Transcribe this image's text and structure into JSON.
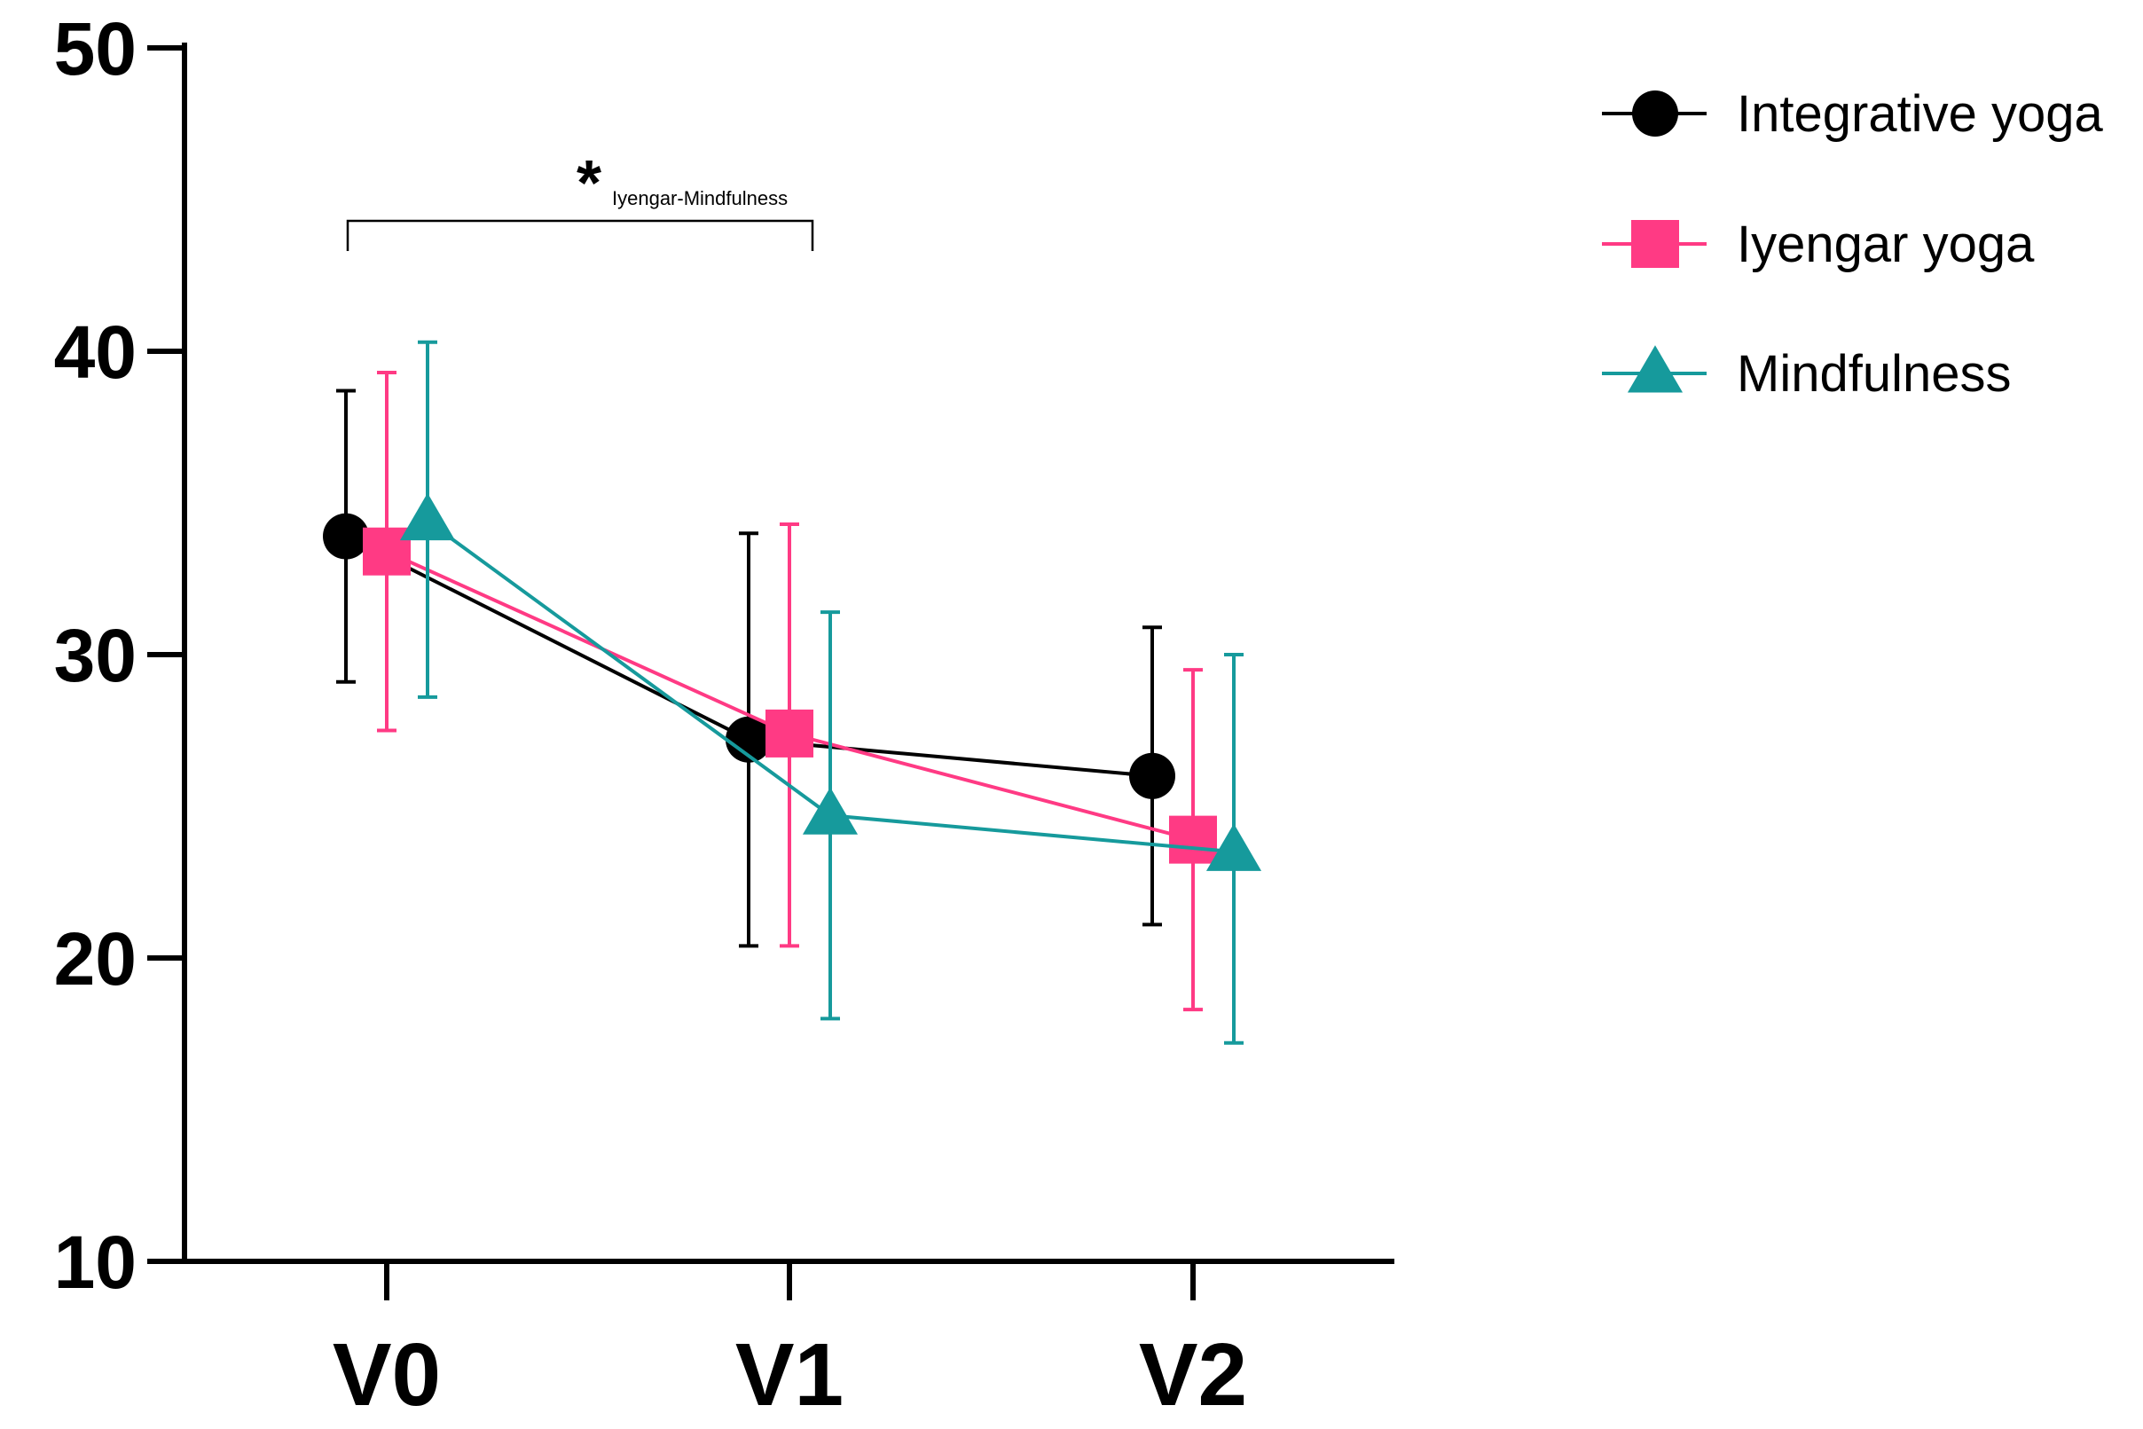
{
  "chart_data": {
    "type": "line",
    "title": "",
    "xlabel": "",
    "ylabel": "",
    "categories": [
      "V0",
      "V1",
      "V2"
    ],
    "ylim": [
      10,
      50
    ],
    "yticks": [
      10,
      20,
      30,
      40,
      50
    ],
    "grid": false,
    "legend_position": "top-right",
    "series": [
      {
        "name": "Integrative yoga",
        "marker": "circle",
        "color": "#000000",
        "values": [
          33.9,
          27.2,
          26.0
        ],
        "error_low": [
          29.1,
          20.4,
          21.1
        ],
        "error_high": [
          38.7,
          34.0,
          30.9
        ]
      },
      {
        "name": "Iyengar yoga",
        "marker": "square",
        "color": "#ff3a84",
        "values": [
          33.4,
          27.4,
          23.9
        ],
        "error_low": [
          27.5,
          20.4,
          18.3
        ],
        "error_high": [
          39.3,
          34.3,
          29.5
        ]
      },
      {
        "name": "Mindfulness",
        "marker": "triangle",
        "color": "#169a9c",
        "values": [
          34.4,
          24.7,
          23.5
        ],
        "error_low": [
          28.6,
          18.0,
          17.2
        ],
        "error_high": [
          40.3,
          31.4,
          30.0
        ]
      }
    ],
    "annotations": [
      {
        "label": "*",
        "sublabel": "Iyengar-Mindfulness",
        "from_category": "V0",
        "to_category": "V1",
        "bracket_y": 44.3
      }
    ]
  }
}
